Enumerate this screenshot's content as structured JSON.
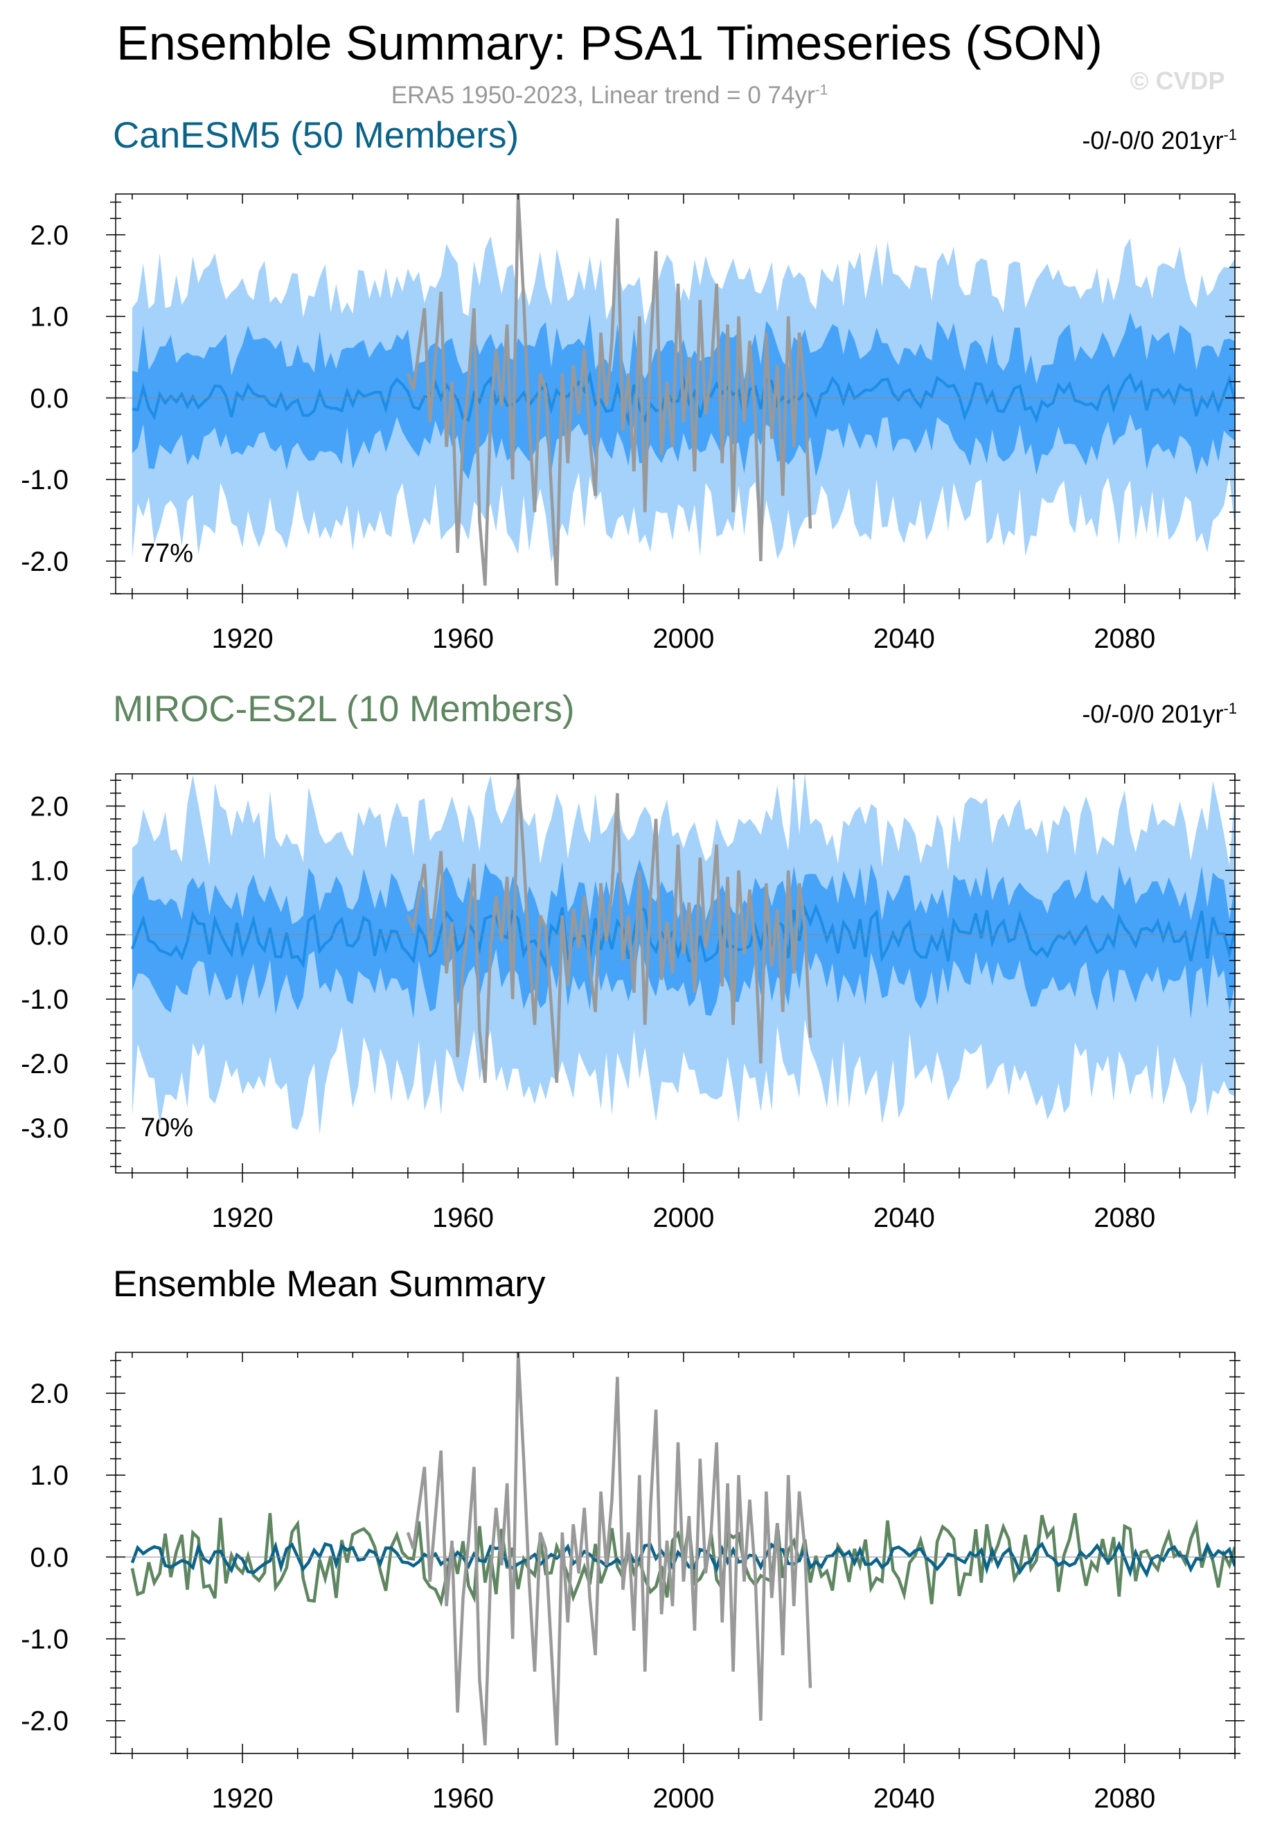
{
  "header": {
    "title": "Ensemble Summary: PSA1 Timeseries (SON)",
    "subtitle": "ERA5 1950-2023, Linear trend = 0 74yr",
    "subtitle_sup": "-1",
    "watermark": "© CVDP"
  },
  "colors": {
    "canesm5": "#0b6389",
    "miroc": "#5e8660",
    "band_outer": "#a5d2fa",
    "band_inner": "#46a3f8",
    "member_mean": "#1e8de6",
    "era5": "#999999"
  },
  "panels": [
    {
      "title": "CanESM5 (50 Members)",
      "trend": "-0/-0/0 201yr",
      "trend_sup": "-1",
      "percent": "77%"
    },
    {
      "title": "MIROC-ES2L (10 Members)",
      "trend": "-0/-0/0 201yr",
      "trend_sup": "-1",
      "percent": "70%"
    },
    {
      "title": "Ensemble Mean Summary"
    }
  ],
  "chart_data": [
    {
      "type": "area",
      "series": [
        {
          "name": "CanESM5 (50 Members)",
          "kind": "ensemble spread bands and member-mean line, 1900-2100"
        },
        {
          "name": "ERA5 1950-2023",
          "kind": "observed line",
          "x": [
            1950,
            1951,
            1952,
            1953,
            1954,
            1955,
            1956,
            1957,
            1958,
            1959,
            1960,
            1961,
            1962,
            1963,
            1964,
            1965,
            1966,
            1967,
            1968,
            1969,
            1970,
            1971,
            1972,
            1973,
            1974,
            1975,
            1976,
            1977,
            1978,
            1979,
            1980,
            1981,
            1982,
            1983,
            1984,
            1985,
            1986,
            1987,
            1988,
            1989,
            1990,
            1991,
            1992,
            1993,
            1994,
            1995,
            1996,
            1997,
            1998,
            1999,
            2000,
            2001,
            2002,
            2003,
            2004,
            2005,
            2006,
            2007,
            2008,
            2009,
            2010,
            2011,
            2012,
            2013,
            2014,
            2015,
            2016,
            2017,
            2018,
            2019,
            2020,
            2021,
            2022,
            2023
          ],
          "y": [
            0.3,
            0.1,
            0.6,
            1.1,
            -0.3,
            0.5,
            1.3,
            -0.6,
            0.2,
            -1.9,
            -0.5,
            0.2,
            1.1,
            -1.5,
            -2.3,
            -0.2,
            0.6,
            -0.1,
            0.9,
            -1.0,
            2.5,
            1.2,
            -0.3,
            -1.4,
            0.3,
            0.1,
            -1.1,
            -2.3,
            0.3,
            -0.8,
            0.4,
            -0.2,
            0.6,
            -0.5,
            -1.2,
            0.8,
            -0.1,
            0.7,
            2.2,
            -0.4,
            0.3,
            -0.9,
            1.0,
            -1.4,
            0.6,
            1.8,
            -0.7,
            0.2,
            -0.6,
            1.4,
            -0.3,
            0.5,
            -0.9,
            1.2,
            -0.2,
            0.3,
            1.4,
            -0.8,
            0.9,
            -1.4,
            1.0,
            -0.3,
            0.7,
            -0.2,
            -2.0,
            0.8,
            -0.5,
            0.4,
            -1.2,
            1.0,
            -0.6,
            0.8,
            0.1,
            -1.6
          ]
        }
      ],
      "xlim": [
        1897,
        2100
      ],
      "ylim": [
        -2.4,
        2.5
      ],
      "x_ticks": [
        1920,
        1960,
        2000,
        2040,
        2080
      ],
      "y_ticks": [
        2.0,
        1.0,
        0.0,
        -1.0,
        -2.0
      ],
      "y_tick_labels": [
        "2.0",
        "1.0",
        "0.0",
        "-1.0",
        "-2.0"
      ],
      "x_tick_labels": [
        "1920",
        "1960",
        "2000",
        "2040",
        "2080"
      ],
      "band_outer_halfwidth": 1.35,
      "band_inner_halfwidth": 0.6
    },
    {
      "type": "area",
      "series": [
        {
          "name": "MIROC-ES2L (10 Members)",
          "kind": "ensemble spread bands and member-mean line, 1900-2100"
        },
        {
          "name": "ERA5 1950-2023",
          "kind": "observed line"
        }
      ],
      "xlim": [
        1897,
        2100
      ],
      "ylim": [
        -3.7,
        2.5
      ],
      "x_ticks": [
        1920,
        1960,
        2000,
        2040,
        2080
      ],
      "y_ticks": [
        2.0,
        1.0,
        0.0,
        -1.0,
        -2.0,
        -3.0
      ],
      "y_tick_labels": [
        "2.0",
        "1.0",
        "0.0",
        "-1.0",
        "-2.0",
        "-3.0"
      ],
      "x_tick_labels": [
        "1920",
        "1960",
        "2000",
        "2040",
        "2080"
      ],
      "band_outer_halfwidth": 1.7,
      "band_inner_halfwidth": 0.7
    },
    {
      "type": "line",
      "series": [
        {
          "name": "CanESM5 (50 Members)",
          "kind": "ensemble mean line"
        },
        {
          "name": "MIROC-ES2L (10 Members)",
          "kind": "ensemble mean line"
        },
        {
          "name": "ERA5 1950-2023",
          "kind": "observed line"
        }
      ],
      "xlim": [
        1897,
        2100
      ],
      "ylim": [
        -2.4,
        2.5
      ],
      "x_ticks": [
        1920,
        1960,
        2000,
        2040,
        2080
      ],
      "y_ticks": [
        2.0,
        1.0,
        0.0,
        -1.0,
        -2.0
      ],
      "y_tick_labels": [
        "2.0",
        "1.0",
        "0.0",
        "-1.0",
        "-2.0"
      ],
      "x_tick_labels": [
        "1920",
        "1960",
        "2000",
        "2040",
        "2080"
      ]
    }
  ]
}
